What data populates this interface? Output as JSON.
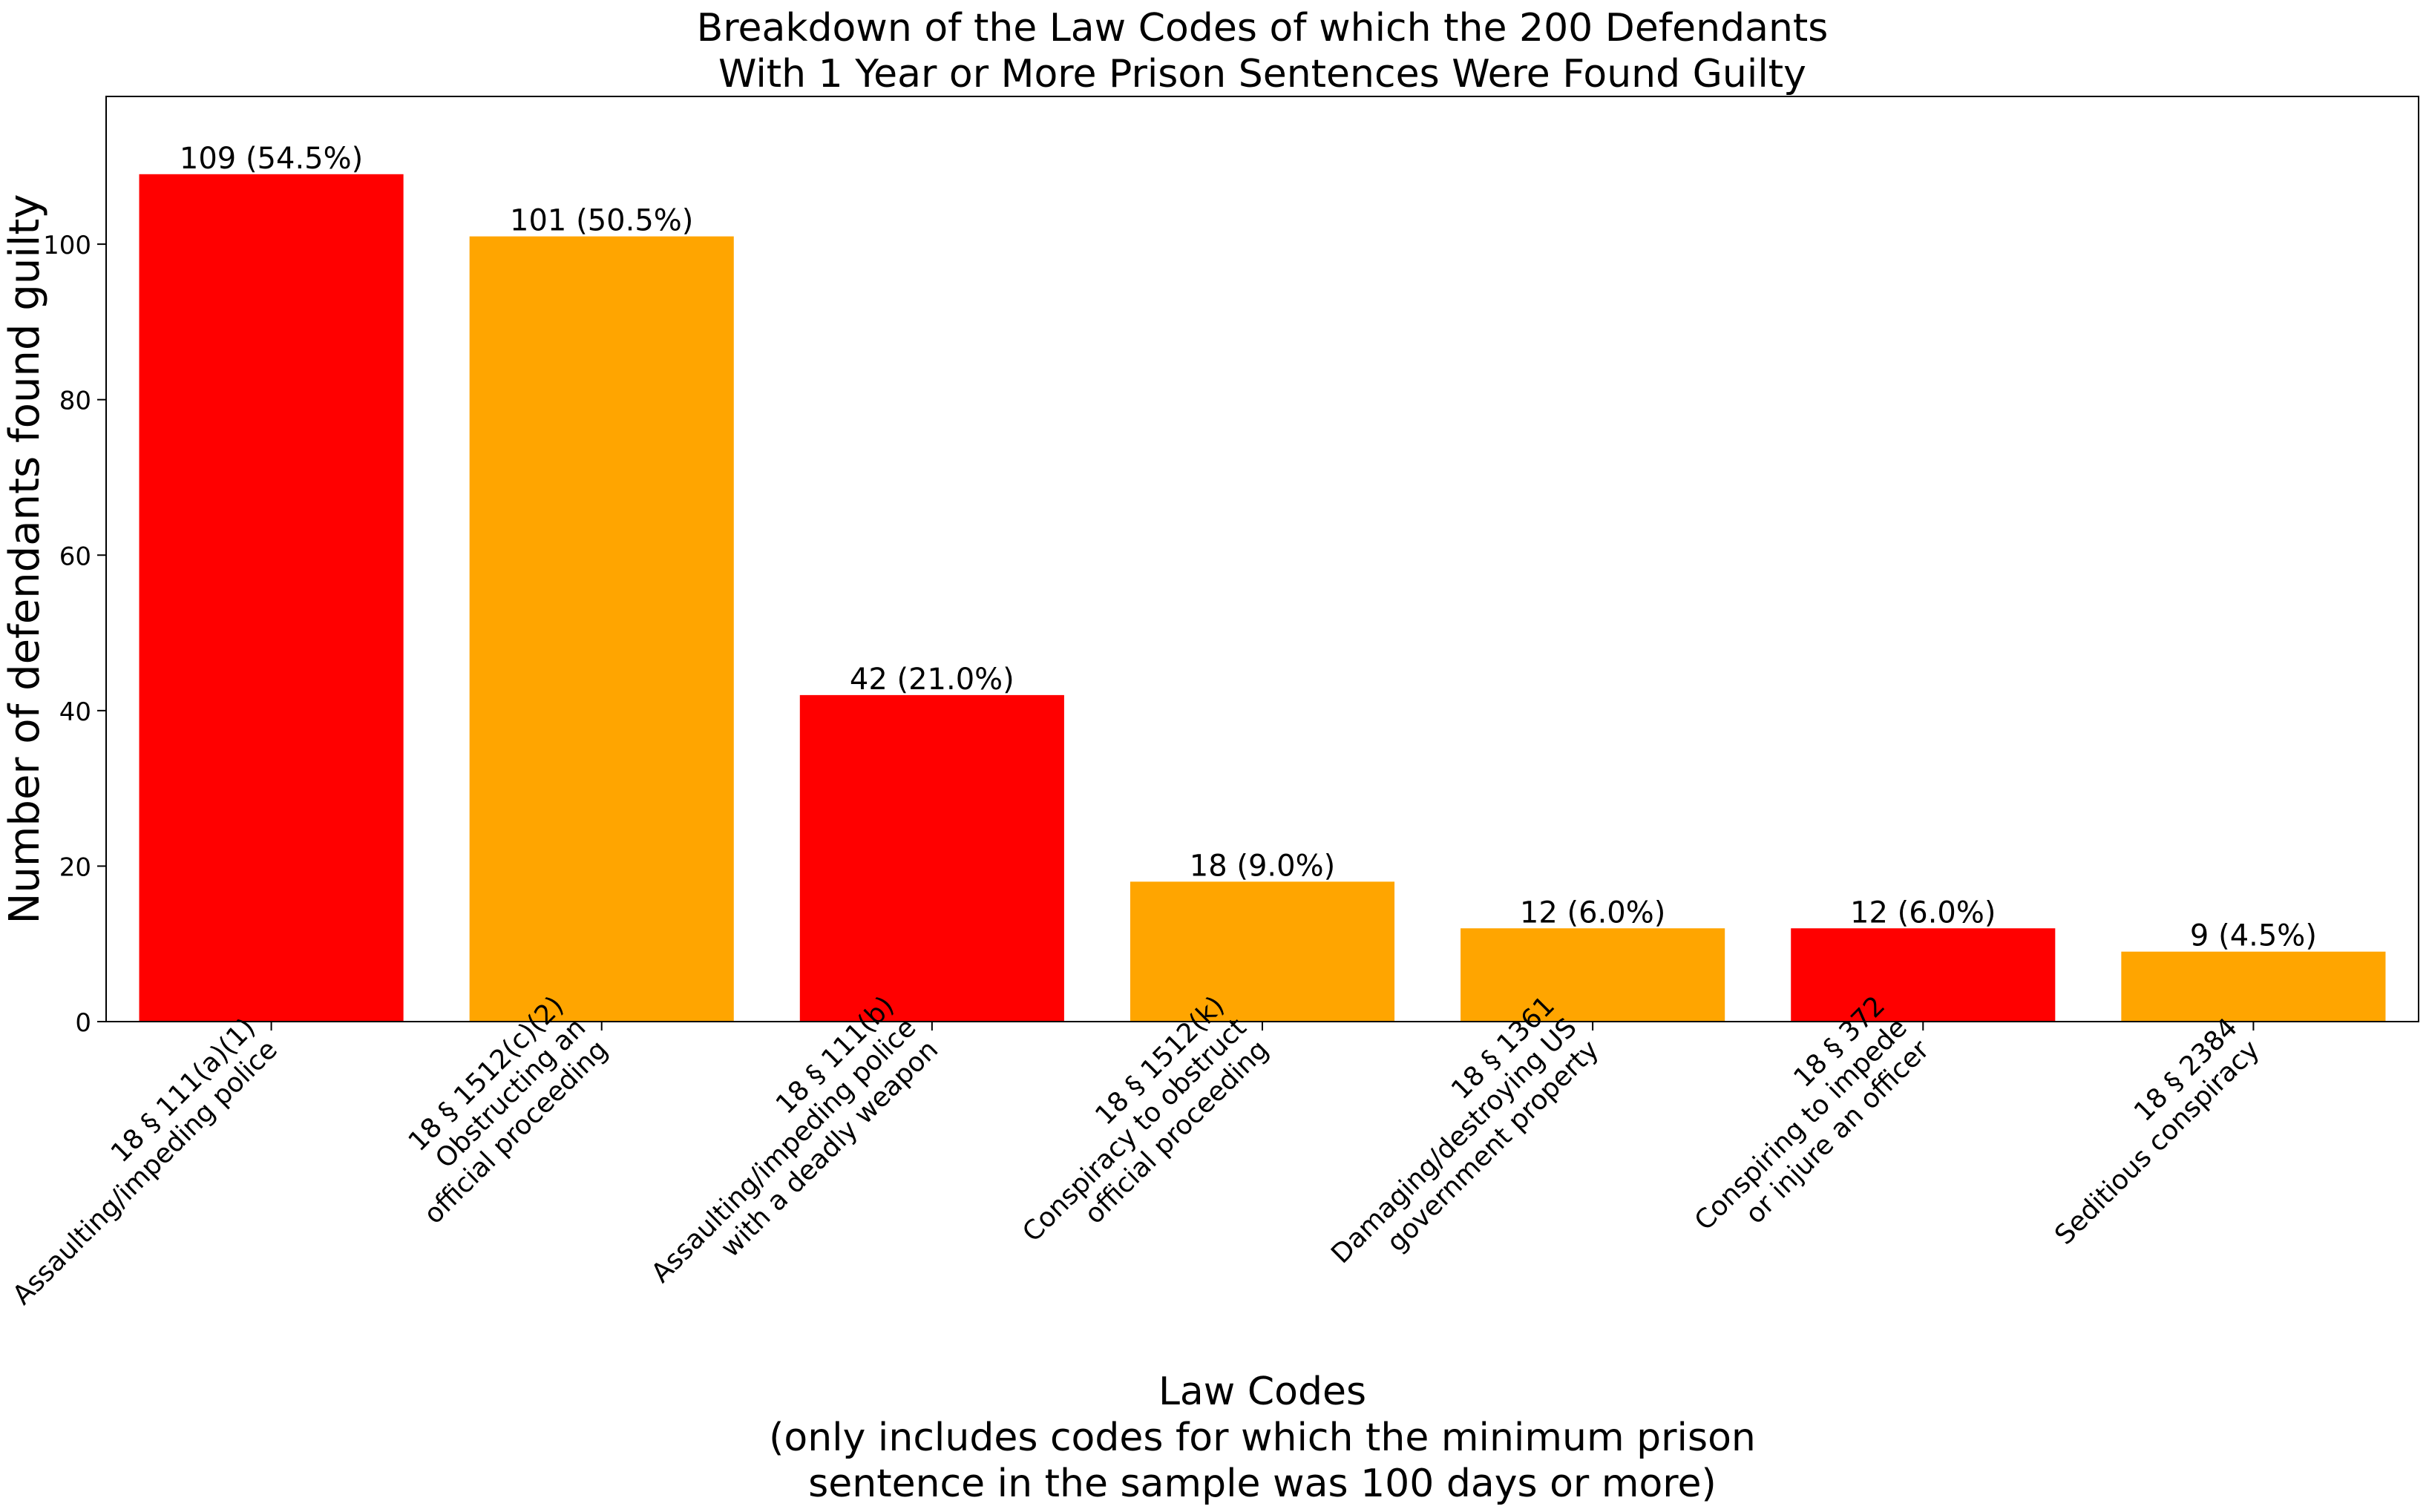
{
  "chart_data": {
    "type": "bar",
    "title": "Breakdown of the Law Codes of which the 200 Defendants\nWith 1 Year or More Prison Sentences Were Found Guilty",
    "xlabel": "Law Codes\n(only includes codes for which the minimum prison\nsentence in the sample was 100 days or more)",
    "ylabel": "Number of defendants found guilty",
    "ylim": [
      0,
      119
    ],
    "yticks": [
      0,
      20,
      40,
      60,
      80,
      100
    ],
    "categories": [
      "18 § 111(a)(1)\nAssaulting/impeding police",
      "18 § 1512(c)(2)\nObstructing an\nofficial proceeding",
      "18 § 111(b)\nAssaulting/impeding police\nwith a deadly weapon",
      "18 § 1512(k)\nConspiracy to obstruct\nofficial proceeding",
      "18 § 1361\nDamaging/destroying US\ngovernment property",
      "18 § 372\nConspiring to impede\nor injure an officer",
      "18 § 2384\nSeditious conspiracy"
    ],
    "values": [
      109,
      101,
      42,
      18,
      12,
      12,
      9
    ],
    "data_labels": [
      "109 (54.5%)",
      "101 (50.5%)",
      "42 (21.0%)",
      "18 (9.0%)",
      "12 (6.0%)",
      "12 (6.0%)",
      "9 (4.5%)"
    ],
    "bar_colors": [
      "#ff0000",
      "#ffa500",
      "#ff0000",
      "#ffa500",
      "#ffa500",
      "#ff0000",
      "#ffa500"
    ],
    "grid": false,
    "legend": "none"
  }
}
